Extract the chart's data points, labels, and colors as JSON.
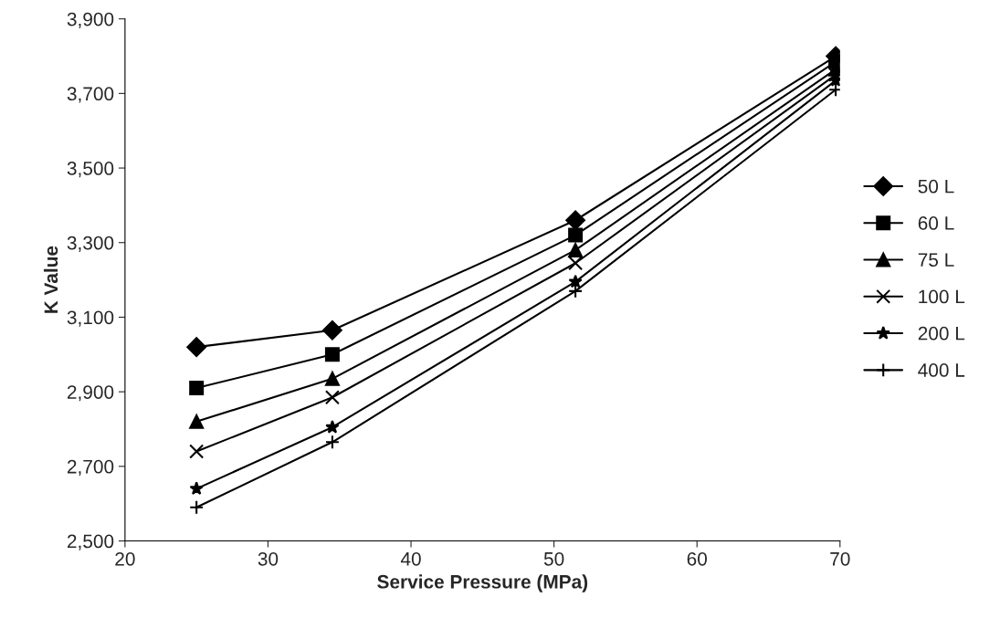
{
  "chart_data": {
    "type": "line",
    "xlabel": "Service Pressure (MPa)",
    "ylabel": "K Value",
    "x": [
      25,
      34.5,
      51.5,
      69.7
    ],
    "series": [
      {
        "name": "50 L",
        "color": "#000000",
        "marker": "diamond",
        "values": [
          3020,
          3065,
          3360,
          3800
        ]
      },
      {
        "name": "60 L",
        "color": "#000000",
        "marker": "square",
        "values": [
          2910,
          3000,
          3320,
          3785
        ]
      },
      {
        "name": "75 L",
        "color": "#000000",
        "marker": "triangle",
        "values": [
          2820,
          2935,
          3280,
          3765
        ]
      },
      {
        "name": "100 L",
        "color": "#000000",
        "marker": "x",
        "values": [
          2740,
          2885,
          3245,
          3750
        ]
      },
      {
        "name": "200 L",
        "color": "#000000",
        "marker": "star",
        "values": [
          2640,
          2805,
          3195,
          3735
        ]
      },
      {
        "name": "400 L",
        "color": "#000000",
        "marker": "cross",
        "values": [
          2590,
          2765,
          3170,
          3710
        ]
      }
    ],
    "xlim": [
      20,
      70
    ],
    "xticks": [
      20,
      30,
      40,
      50,
      60,
      70
    ],
    "ylim": [
      2500,
      3900
    ],
    "yticks": [
      {
        "value": 2500,
        "label": "2,500"
      },
      {
        "value": 2700,
        "label": "2,700"
      },
      {
        "value": 2900,
        "label": "2,900"
      },
      {
        "value": 3100,
        "label": "3,100"
      },
      {
        "value": 3300,
        "label": "3,300"
      },
      {
        "value": 3500,
        "label": "3,500"
      },
      {
        "value": 3700,
        "label": "3,700"
      },
      {
        "value": 3900,
        "label": "3,900"
      }
    ],
    "grid": false,
    "legend": "right",
    "line_style": "solid"
  }
}
